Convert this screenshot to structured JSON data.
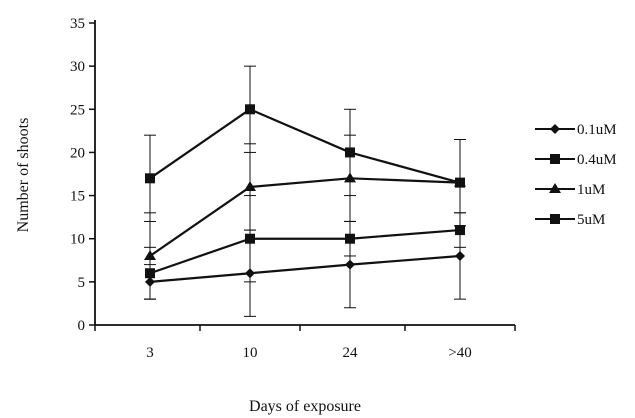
{
  "chart_data": {
    "type": "line",
    "title": "",
    "xlabel": "Days of exposure",
    "ylabel": "Number of shoots",
    "categories": [
      "3",
      "10",
      "24",
      ">40"
    ],
    "ylim": [
      0,
      35
    ],
    "yticks": [
      0,
      5,
      10,
      15,
      20,
      25,
      30,
      35
    ],
    "grid": false,
    "legend_position": "right",
    "series_color": "#111111",
    "series": [
      {
        "name": "0.1uM",
        "marker": "diamond",
        "values": [
          5,
          6,
          7,
          8
        ],
        "errors": [
          2,
          5,
          5,
          5
        ]
      },
      {
        "name": "0.4uM",
        "marker": "square",
        "values": [
          6,
          10,
          10,
          11
        ],
        "errors": [
          3,
          5,
          2,
          2
        ]
      },
      {
        "name": "1uM",
        "marker": "triangle",
        "values": [
          8,
          16,
          17,
          16.5
        ],
        "errors": [
          5,
          5,
          5,
          5
        ]
      },
      {
        "name": "5uM",
        "marker": "square",
        "values": [
          17,
          25,
          20,
          16.5
        ],
        "errors": [
          5,
          5,
          5,
          5
        ]
      }
    ]
  }
}
